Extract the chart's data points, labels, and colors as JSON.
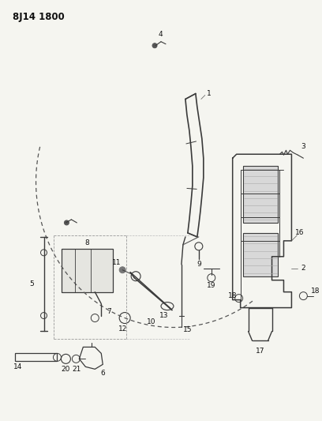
{
  "title": "8J14 1800",
  "bg_color": "#f5f5f0",
  "line_color": "#3a3a3a",
  "fig_width": 4.08,
  "fig_height": 5.33,
  "dpi": 100,
  "label_fs": 6.5,
  "title_fs": 8.5
}
